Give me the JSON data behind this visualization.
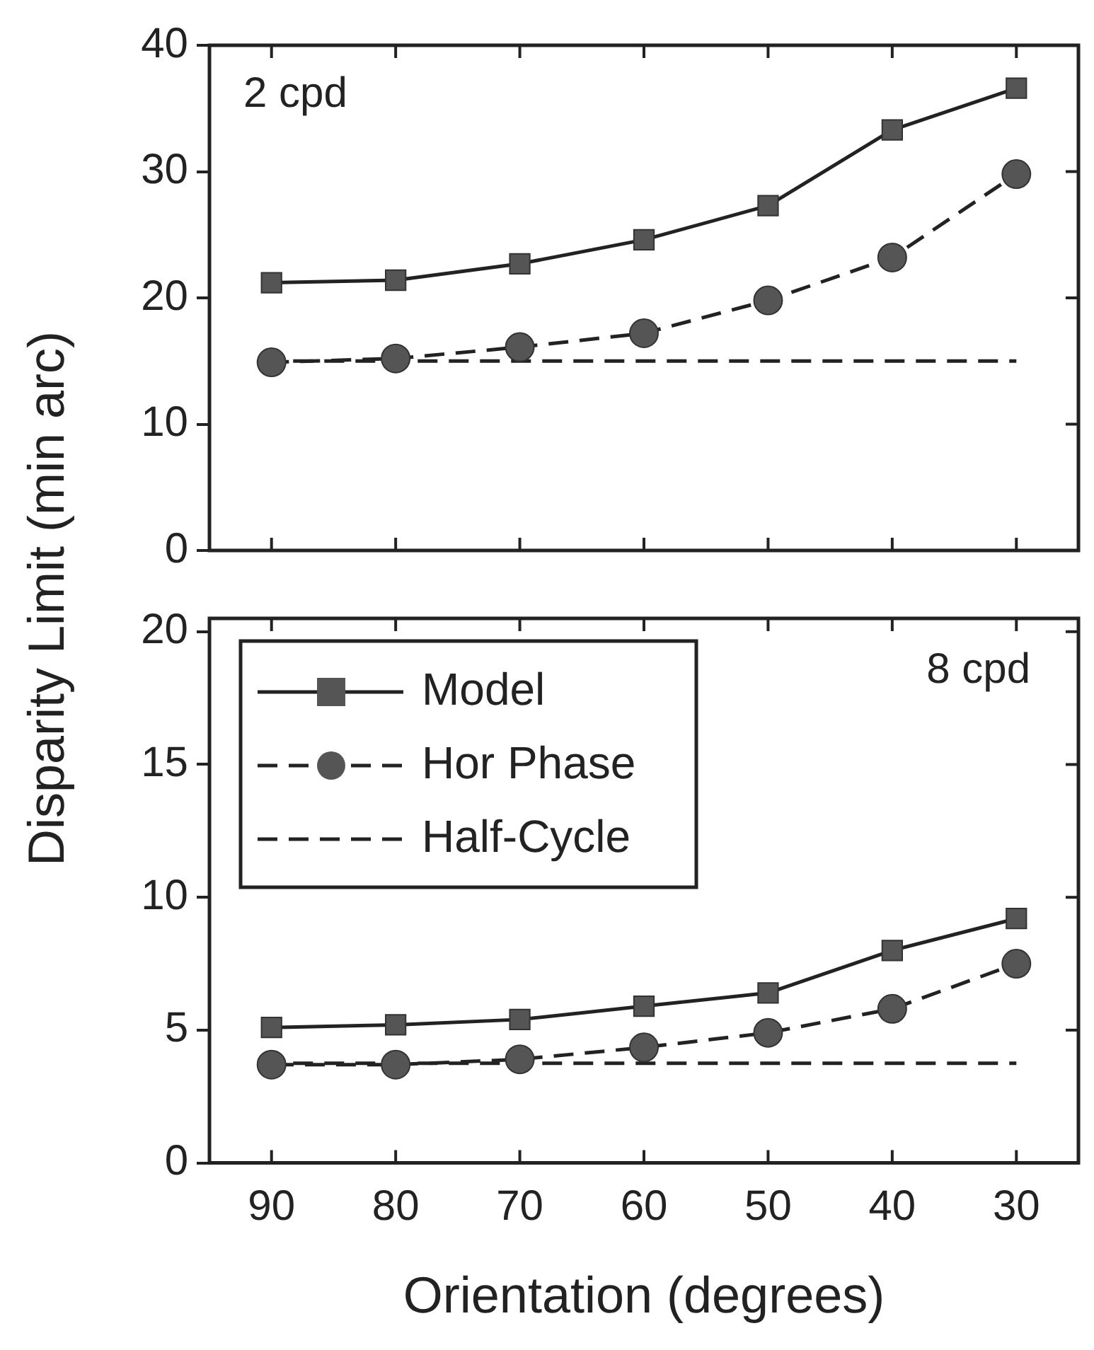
{
  "chart_data": [
    {
      "type": "line",
      "ylabel": "Disparity Limit (min arc)",
      "annotations": [
        "2 cpd"
      ],
      "x": [
        90,
        80,
        70,
        60,
        50,
        40,
        30
      ],
      "xlim": [
        95,
        25
      ],
      "xticks": [
        {
          "value": 90,
          "label": null
        },
        {
          "value": 80,
          "label": null
        },
        {
          "value": 70,
          "label": null
        },
        {
          "value": 60,
          "label": null
        },
        {
          "value": 50,
          "label": null
        },
        {
          "value": 40,
          "label": null
        },
        {
          "value": 30,
          "label": null
        }
      ],
      "ylim": [
        0,
        40
      ],
      "yticks": [
        0,
        10,
        20,
        30,
        40
      ],
      "tick_labels": "y",
      "grid": false,
      "legend": false,
      "series": [
        {
          "color": "#555555",
          "marker": "square",
          "line_style": "solid",
          "values": [
            21.2,
            21.4,
            22.7,
            24.6,
            27.3,
            33.3,
            36.6
          ]
        },
        {
          "color": "#555555",
          "marker": "circle",
          "line_style": "dashed",
          "values": [
            14.9,
            15.2,
            16.1,
            17.2,
            19.8,
            23.2,
            29.8
          ]
        },
        {
          "color": "#222222",
          "marker": "none",
          "line_style": "dashed",
          "values": [
            15,
            15,
            15,
            15,
            15,
            15,
            15
          ]
        }
      ]
    },
    {
      "type": "line",
      "xlabel": "Orientation (degrees)",
      "annotations": [
        "8 cpd"
      ],
      "x": [
        90,
        80,
        70,
        60,
        50,
        40,
        30
      ],
      "xlim": [
        95,
        25
      ],
      "xticks": [
        90,
        80,
        70,
        60,
        50,
        40,
        30
      ],
      "ylim": [
        0,
        20.5
      ],
      "yticks": [
        0,
        5,
        10,
        15,
        20
      ],
      "grid": false,
      "legend": "top left",
      "series": [
        {
          "name": "Model",
          "color": "#555555",
          "marker": "square",
          "line_style": "solid",
          "values": [
            5.1,
            5.2,
            5.4,
            5.9,
            6.4,
            8.0,
            9.2
          ]
        },
        {
          "name": "Hor Phase",
          "color": "#555555",
          "marker": "circle",
          "line_style": "dashed",
          "values": [
            3.7,
            3.7,
            3.9,
            4.35,
            4.9,
            5.8,
            7.5
          ]
        },
        {
          "name": "Half-Cycle",
          "color": "#222222",
          "marker": "none",
          "line_style": "dashed",
          "values": [
            3.75,
            3.75,
            3.75,
            3.75,
            3.75,
            3.75,
            3.75
          ]
        }
      ]
    }
  ]
}
